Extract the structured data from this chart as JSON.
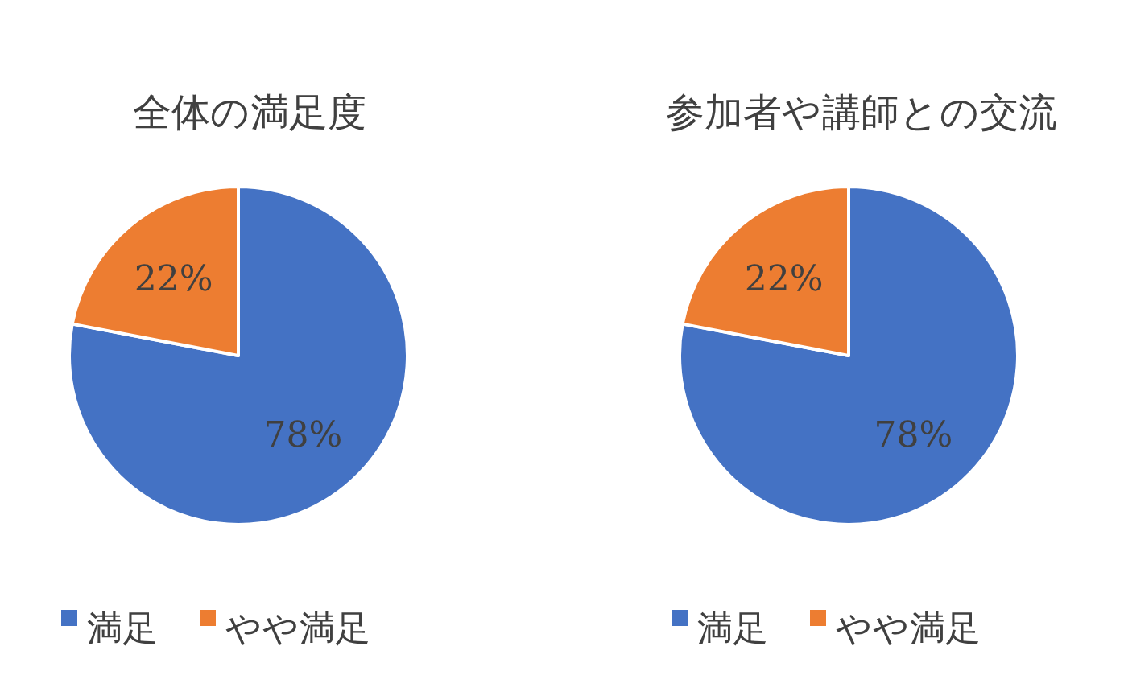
{
  "chart_data": [
    {
      "type": "pie",
      "title": "全体の満足度",
      "categories": [
        "満足",
        "やや満足"
      ],
      "values": [
        78,
        22
      ],
      "value_labels": [
        "78%",
        "22%"
      ],
      "colors": [
        "#4472c4",
        "#ed7d31"
      ],
      "legend": "bottom"
    },
    {
      "type": "pie",
      "title": "参加者や講師との交流",
      "categories": [
        "満足",
        "やや満足"
      ],
      "values": [
        78,
        22
      ],
      "value_labels": [
        "78%",
        "22%"
      ],
      "colors": [
        "#4472c4",
        "#ed7d31"
      ],
      "legend": "bottom"
    }
  ]
}
